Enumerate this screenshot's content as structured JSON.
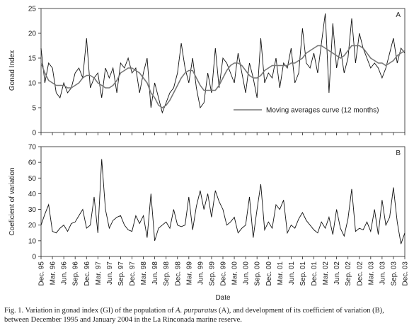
{
  "chart_data": [
    {
      "type": "line",
      "label": "A",
      "y_label": "Gonad Index",
      "ylim": [
        0,
        25
      ],
      "yticks": [
        0,
        5,
        10,
        15,
        20,
        25
      ],
      "legend": "lower right",
      "series": [
        {
          "color": "#111111",
          "values": [
            17,
            10,
            14,
            13,
            8,
            7,
            10,
            8,
            9,
            12,
            13,
            11,
            19,
            9,
            11,
            12,
            7,
            13,
            11,
            13,
            8,
            14,
            13,
            15,
            12,
            13,
            8,
            12,
            15,
            5,
            10,
            7,
            4,
            6,
            8,
            9,
            12,
            18,
            13,
            10,
            15,
            9,
            5,
            6,
            12,
            8,
            17,
            9,
            15,
            14,
            12,
            10,
            16,
            12,
            8,
            14,
            11,
            7,
            19,
            10,
            12,
            11,
            15,
            9,
            14,
            13,
            17,
            10,
            12,
            21,
            14,
            13,
            16,
            12,
            18,
            24,
            8,
            22,
            13,
            17,
            12,
            15,
            23,
            14,
            20,
            17,
            15,
            13,
            14,
            13,
            11,
            13,
            16,
            19,
            14,
            17,
            16
          ]
        },
        {
          "name": "Moving averages curve (12 months)",
          "color": "#777777",
          "values": [
            14,
            12,
            10.5,
            10,
            9.5,
            9.5,
            9.5,
            9,
            9,
            9.5,
            10,
            11,
            11.5,
            11.5,
            11,
            10,
            9.5,
            9,
            9,
            9.5,
            10.5,
            12,
            12.5,
            13,
            13,
            12.5,
            12,
            11,
            10,
            8,
            7,
            5.5,
            5,
            5.5,
            6.5,
            8,
            9.5,
            11,
            12,
            12.5,
            12.5,
            11,
            9.5,
            8.5,
            8.5,
            8.5,
            8.5,
            9.5,
            11,
            12.5,
            13.5,
            14,
            14,
            13.5,
            12.5,
            11.5,
            11,
            11,
            11.5,
            12.5,
            13,
            13.5,
            13.5,
            13.5,
            13.5,
            13.5,
            14,
            14,
            14.5,
            15,
            16,
            16.5,
            17,
            17.5,
            17.5,
            17,
            16.5,
            16,
            15.5,
            15,
            15.5,
            16.5,
            17.5,
            17.5,
            17.5,
            17,
            16,
            15,
            14.5,
            14,
            14,
            13.5,
            14,
            14.5,
            15.5,
            16,
            16.5
          ]
        }
      ]
    },
    {
      "type": "line",
      "label": "B",
      "y_label": "Coeficient of variation",
      "x_label": "Date",
      "ylim": [
        0,
        70
      ],
      "yticks": [
        0,
        10,
        20,
        30,
        40,
        50,
        60,
        70
      ],
      "categories": [
        "Dec. 95",
        null,
        null,
        "Mar. 96",
        null,
        null,
        "Jun. 96",
        null,
        null,
        "Sep. 96",
        null,
        null,
        "Dec. 96",
        null,
        null,
        "Mar. 97",
        null,
        null,
        "Jun. 97",
        null,
        null,
        "Sep. 97",
        null,
        null,
        "Dec. 97",
        null,
        null,
        "Mar. 98",
        null,
        null,
        "Jun. 98",
        null,
        null,
        "Sep. 98",
        null,
        null,
        "Dec. 98",
        null,
        null,
        "Mar. 99",
        null,
        null,
        "Jun. 99",
        null,
        null,
        "Sep. 99",
        null,
        null,
        "Dec. 99",
        null,
        null,
        "Mar. 00",
        null,
        null,
        "Jun. 00",
        null,
        null,
        "Sep. 00",
        null,
        null,
        "Dec. 00",
        null,
        null,
        "Mar. 01",
        null,
        null,
        "Jun. 01",
        null,
        null,
        "Sep. 01",
        null,
        null,
        "Dec. 01",
        null,
        null,
        "Mar. 02",
        null,
        null,
        "Jun. 02",
        null,
        null,
        "Sep. 02",
        null,
        null,
        "Dec. 02",
        null,
        null,
        "Mar. 03",
        null,
        null,
        "Jun. 03",
        null,
        null,
        "Sep. 03",
        null,
        null,
        "Dec. 03"
      ],
      "series": [
        {
          "color": "#111111",
          "values": [
            20,
            27,
            33,
            16,
            15,
            18,
            20,
            16,
            21,
            22,
            26,
            30,
            18,
            20,
            38,
            15,
            62,
            30,
            18,
            23,
            25,
            26,
            20,
            17,
            16,
            26,
            21,
            26,
            12,
            40,
            10,
            18,
            20,
            22,
            18,
            30,
            20,
            19,
            20,
            38,
            17,
            32,
            42,
            30,
            40,
            25,
            42,
            35,
            30,
            20,
            22,
            25,
            15,
            18,
            20,
            38,
            12,
            30,
            46,
            17,
            22,
            18,
            33,
            30,
            36,
            15,
            20,
            18,
            24,
            28,
            23,
            20,
            17,
            15,
            22,
            18,
            25,
            14,
            30,
            18,
            13,
            24,
            43,
            16,
            18,
            17,
            22,
            16,
            30,
            14,
            36,
            20,
            25,
            44,
            22,
            8,
            15
          ]
        }
      ]
    }
  ],
  "caption": [
    "Fig. 1. Variation in gonad index (GI) of the population of ",
    "A. purpuratus",
    " (A), and development of its coefficient of variation (B), between December 1995 and January 2004 in the La Rinconada marine reserve."
  ]
}
